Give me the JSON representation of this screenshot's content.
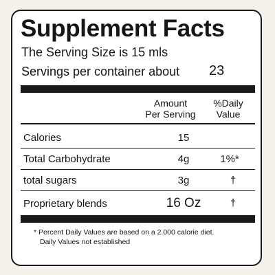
{
  "title": "Supplement Facts",
  "serving_size": "The Serving Size is 15 mls",
  "servings_per_container_label": "Servings per container about",
  "servings_per_container_value": "23",
  "columns": {
    "amount_line1": "Amount",
    "amount_line2": "Per Serving",
    "dv_line1": "%Daily",
    "dv_line2": "Value"
  },
  "rows": [
    {
      "label": "Calories",
      "amount": "15",
      "dv": ""
    },
    {
      "label": "Total Carbohydrate",
      "amount": "4g",
      "dv": "1%*"
    },
    {
      "label": "total sugars",
      "amount": "3g",
      "dv": "†"
    },
    {
      "label": "Proprietary blends",
      "amount": "16 Oz",
      "dv": "†"
    }
  ],
  "footnote_line1": "* Percent Daily Values are based on a 2.000 calorie diet.",
  "footnote_line2": "Daily Values not established"
}
